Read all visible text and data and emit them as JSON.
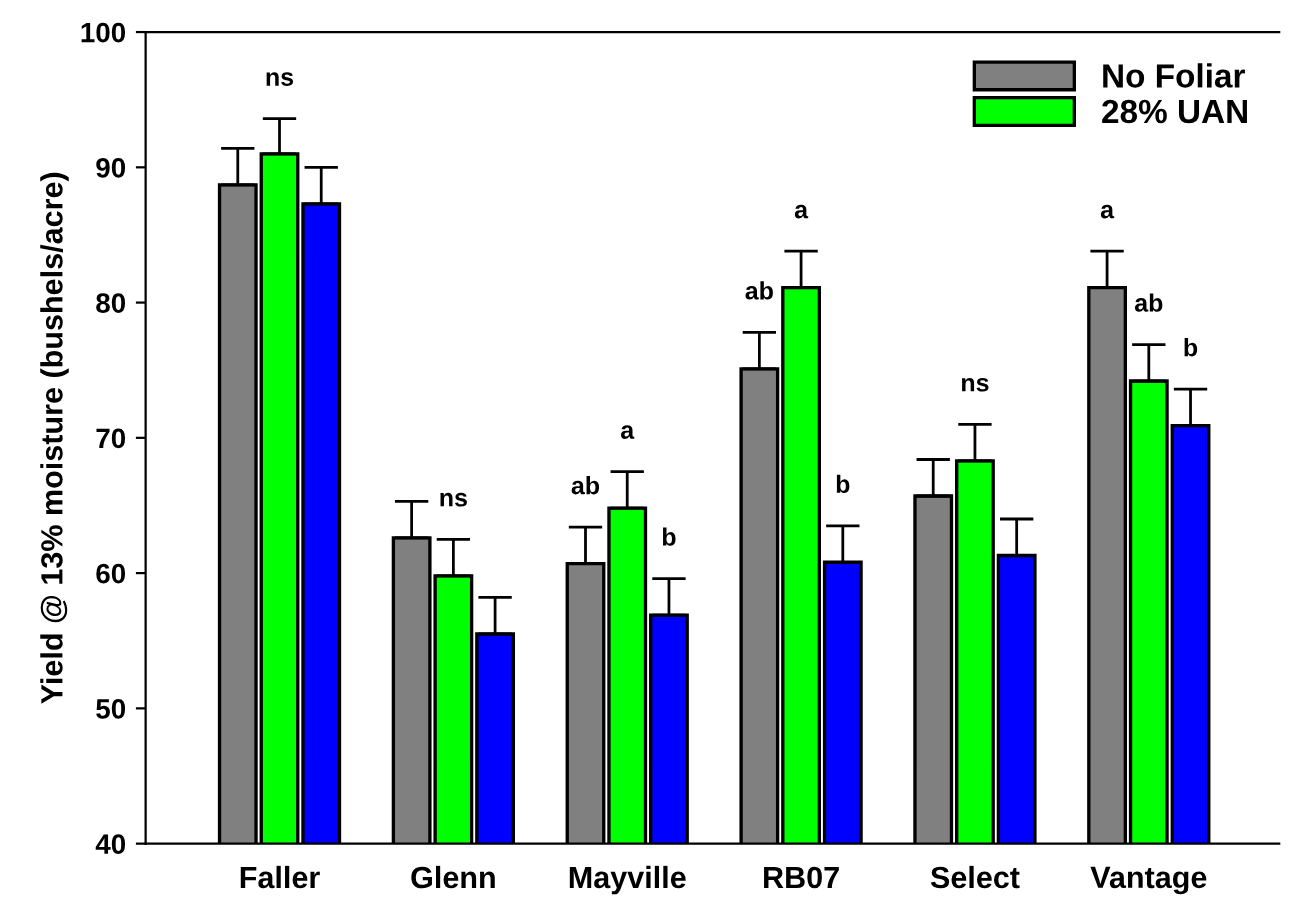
{
  "chart_data": {
    "type": "bar",
    "ylabel": "Yield @ 13% moisture (bushels/acre)",
    "categories": [
      "Faller",
      "Glenn",
      "Mayville",
      "RB07",
      "Select",
      "Vantage"
    ],
    "series": [
      {
        "name": "No Foliar",
        "color": "#808080",
        "values": [
          88.7,
          62.6,
          60.7,
          75.1,
          65.7,
          81.1
        ],
        "errors": [
          2.7,
          2.7,
          2.7,
          2.7,
          2.7,
          2.7
        ],
        "value_labels": [
          null,
          null,
          "ab",
          "ab",
          null,
          "a"
        ]
      },
      {
        "name": "28% UAN",
        "color": "#00ff00",
        "values": [
          91.0,
          59.8,
          64.8,
          81.1,
          68.3,
          74.2
        ],
        "errors": [
          2.6,
          2.7,
          2.7,
          2.7,
          2.7,
          2.7
        ],
        "value_labels": [
          "ns",
          "ns",
          "a",
          "a",
          "ns",
          "ab"
        ]
      },
      {
        "color": "#0000ff",
        "values": [
          87.3,
          55.5,
          56.9,
          60.8,
          61.3,
          70.9
        ],
        "errors": [
          2.7,
          2.7,
          2.7,
          2.7,
          2.7,
          2.7
        ],
        "value_labels": [
          null,
          null,
          "b",
          "b",
          null,
          "b"
        ]
      }
    ],
    "ylim": [
      40,
      100
    ],
    "yticks": [
      40,
      50,
      60,
      70,
      80,
      90,
      100
    ],
    "grid": false,
    "legend": "top right"
  }
}
